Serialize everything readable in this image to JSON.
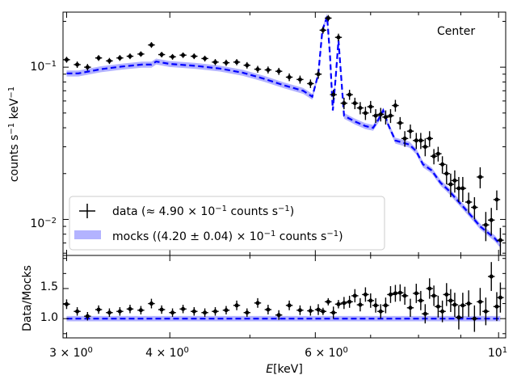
{
  "chart_data": [
    {
      "type": "line",
      "panel": "main",
      "title": "",
      "annotation": "Center",
      "ylabel": {
        "pre": "counts s",
        "s_exp": "−1",
        "mid": " keV",
        "k_exp": "−1"
      },
      "xscale": "log",
      "yscale": "log",
      "xlim": [
        2.97,
        10.2
      ],
      "ylim": [
        0.0058,
        0.23
      ],
      "yticks": [
        {
          "value": 0.1,
          "base": "10",
          "exp": "−1"
        },
        {
          "value": 0.01,
          "base": "10",
          "exp": "−2"
        }
      ],
      "legend": {
        "position": "lower-left",
        "entries": [
          {
            "name": "data",
            "text_pre": "data (≈  4.90 × 10",
            "text_exp1": "−1",
            "text_mid": " counts s",
            "text_exp2": "−1",
            "text_post": ")"
          },
          {
            "name": "mocks",
            "text_pre": "mocks ((4.20 ± 0.04) × 10",
            "text_exp1": "−1",
            "text_mid": " counts s",
            "text_exp2": "−1",
            "text_post": ")"
          }
        ]
      },
      "colors": {
        "model": "#0000ff",
        "band": "#b3b3ff",
        "data": "#000000"
      },
      "series": [
        {
          "name": "data",
          "x": [
            3.0,
            3.09,
            3.18,
            3.28,
            3.38,
            3.48,
            3.58,
            3.69,
            3.8,
            3.91,
            4.03,
            4.15,
            4.28,
            4.41,
            4.54,
            4.68,
            4.82,
            4.96,
            5.11,
            5.26,
            5.42,
            5.58,
            5.75,
            5.92,
            6.05,
            6.13,
            6.22,
            6.31,
            6.4,
            6.5,
            6.6,
            6.7,
            6.8,
            6.9,
            7.0,
            7.1,
            7.2,
            7.3,
            7.4,
            7.5,
            7.6,
            7.7,
            7.82,
            7.95,
            8.05,
            8.15,
            8.25,
            8.35,
            8.45,
            8.55,
            8.65,
            8.75,
            8.85,
            8.95,
            9.05,
            9.2,
            9.35,
            9.5,
            9.65,
            9.8,
            9.95,
            10.05
          ],
          "y": [
            0.112,
            0.104,
            0.1,
            0.115,
            0.11,
            0.115,
            0.118,
            0.122,
            0.14,
            0.121,
            0.117,
            0.12,
            0.118,
            0.114,
            0.108,
            0.107,
            0.108,
            0.103,
            0.097,
            0.096,
            0.094,
            0.086,
            0.083,
            0.078,
            0.09,
            0.175,
            0.21,
            0.066,
            0.157,
            0.058,
            0.066,
            0.058,
            0.054,
            0.05,
            0.055,
            0.048,
            0.049,
            0.047,
            0.048,
            0.056,
            0.043,
            0.034,
            0.038,
            0.033,
            0.033,
            0.03,
            0.034,
            0.026,
            0.027,
            0.023,
            0.02,
            0.017,
            0.018,
            0.016,
            0.016,
            0.013,
            0.012,
            0.019,
            0.0092,
            0.0099,
            0.0135,
            0.0073
          ],
          "yerr": [
            0.005,
            0.005,
            0.005,
            0.005,
            0.005,
            0.005,
            0.005,
            0.005,
            0.006,
            0.005,
            0.005,
            0.005,
            0.005,
            0.005,
            0.005,
            0.005,
            0.005,
            0.005,
            0.005,
            0.005,
            0.005,
            0.005,
            0.005,
            0.005,
            0.006,
            0.009,
            0.01,
            0.005,
            0.009,
            0.005,
            0.005,
            0.005,
            0.005,
            0.005,
            0.005,
            0.005,
            0.005,
            0.005,
            0.005,
            0.005,
            0.004,
            0.004,
            0.004,
            0.004,
            0.004,
            0.004,
            0.004,
            0.003,
            0.003,
            0.003,
            0.003,
            0.003,
            0.003,
            0.003,
            0.003,
            0.002,
            0.002,
            0.003,
            0.002,
            0.002,
            0.002,
            0.0015
          ]
        },
        {
          "name": "mocks",
          "x": [
            3.0,
            3.1,
            3.3,
            3.5,
            3.7,
            3.8,
            3.85,
            4.0,
            4.3,
            4.6,
            4.9,
            5.2,
            5.5,
            5.8,
            5.95,
            6.05,
            6.12,
            6.2,
            6.25,
            6.3,
            6.35,
            6.4,
            6.5,
            6.7,
            6.9,
            7.05,
            7.15,
            7.25,
            7.35,
            7.5,
            7.65,
            7.8,
            7.95,
            8.1,
            8.3,
            8.5,
            8.7,
            8.9,
            9.1,
            9.3,
            9.5,
            9.7,
            9.9,
            10.05
          ],
          "y": [
            0.091,
            0.091,
            0.097,
            0.101,
            0.104,
            0.104,
            0.109,
            0.105,
            0.102,
            0.098,
            0.092,
            0.084,
            0.076,
            0.07,
            0.064,
            0.09,
            0.175,
            0.215,
            0.12,
            0.052,
            0.085,
            0.15,
            0.048,
            0.044,
            0.041,
            0.04,
            0.045,
            0.052,
            0.042,
            0.033,
            0.032,
            0.031,
            0.028,
            0.023,
            0.021,
            0.0175,
            0.0155,
            0.0135,
            0.0118,
            0.0103,
            0.009,
            0.0082,
            0.0075,
            0.0068
          ],
          "band_frac": 0.045
        }
      ]
    },
    {
      "type": "scatter",
      "panel": "ratio",
      "xlabel": {
        "pre": "E",
        "post": "[keV]"
      },
      "ylabel": "Data/Mocks",
      "xscale": "log",
      "xlim": [
        2.97,
        10.2
      ],
      "ylim": [
        0.68,
        2.05
      ],
      "yticks": [
        1.0,
        1.5
      ],
      "xticks": [
        {
          "value": 3,
          "base": "3 × 10",
          "exp": "0"
        },
        {
          "value": 4,
          "base": "4 × 10",
          "exp": "0"
        },
        {
          "value": 6,
          "base": "6 × 10",
          "exp": "0"
        },
        {
          "value": 10,
          "base": "10",
          "exp": "1"
        }
      ],
      "reference": 1.0,
      "series": [
        {
          "name": "ratio",
          "x": [
            3.0,
            3.09,
            3.18,
            3.28,
            3.38,
            3.48,
            3.58,
            3.69,
            3.8,
            3.91,
            4.03,
            4.15,
            4.28,
            4.41,
            4.54,
            4.68,
            4.82,
            4.96,
            5.11,
            5.26,
            5.42,
            5.58,
            5.75,
            5.92,
            6.05,
            6.13,
            6.22,
            6.31,
            6.4,
            6.5,
            6.6,
            6.7,
            6.8,
            6.9,
            7.0,
            7.1,
            7.2,
            7.3,
            7.4,
            7.5,
            7.6,
            7.7,
            7.82,
            7.95,
            8.05,
            8.15,
            8.25,
            8.35,
            8.45,
            8.55,
            8.65,
            8.75,
            8.85,
            8.95,
            9.05,
            9.2,
            9.35,
            9.5,
            9.65,
            9.8,
            9.95,
            10.05
          ],
          "y": [
            1.24,
            1.12,
            1.04,
            1.15,
            1.1,
            1.12,
            1.16,
            1.14,
            1.25,
            1.15,
            1.1,
            1.16,
            1.12,
            1.1,
            1.12,
            1.14,
            1.22,
            1.1,
            1.26,
            1.15,
            1.06,
            1.22,
            1.14,
            1.13,
            1.15,
            1.12,
            1.28,
            1.1,
            1.24,
            1.26,
            1.28,
            1.38,
            1.23,
            1.4,
            1.3,
            1.22,
            1.12,
            1.22,
            1.4,
            1.42,
            1.43,
            1.38,
            1.18,
            1.42,
            1.3,
            1.08,
            1.5,
            1.38,
            1.2,
            1.12,
            1.4,
            1.3,
            1.23,
            1.02,
            1.22,
            1.25,
            1.0,
            1.28,
            1.12,
            1.7,
            1.2,
            1.35
          ],
          "yerr": [
            0.08,
            0.07,
            0.07,
            0.07,
            0.07,
            0.07,
            0.07,
            0.07,
            0.08,
            0.07,
            0.07,
            0.07,
            0.07,
            0.07,
            0.07,
            0.07,
            0.08,
            0.07,
            0.08,
            0.08,
            0.08,
            0.08,
            0.08,
            0.08,
            0.09,
            0.06,
            0.06,
            0.1,
            0.07,
            0.1,
            0.1,
            0.11,
            0.11,
            0.12,
            0.12,
            0.12,
            0.12,
            0.13,
            0.14,
            0.14,
            0.14,
            0.15,
            0.15,
            0.16,
            0.16,
            0.16,
            0.17,
            0.17,
            0.18,
            0.18,
            0.19,
            0.19,
            0.2,
            0.2,
            0.21,
            0.22,
            0.22,
            0.23,
            0.23,
            0.24,
            0.24,
            0.25
          ]
        }
      ]
    }
  ]
}
